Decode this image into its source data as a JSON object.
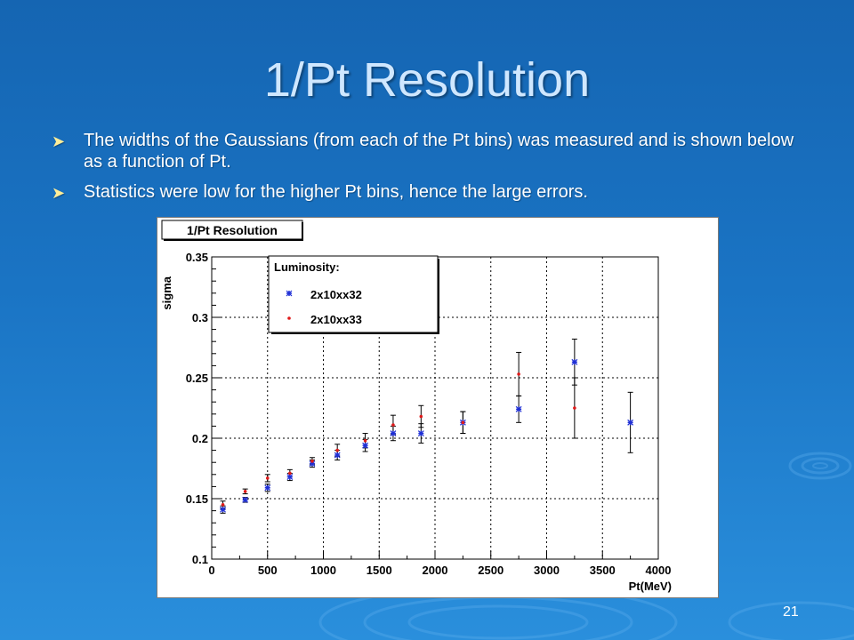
{
  "slide": {
    "title": "1/Pt Resolution",
    "bullets": [
      "The widths of the Gaussians (from each of the Pt bins) was measured and is shown below as a function of Pt.",
      "Statistics were low for the higher Pt bins, hence the large errors."
    ],
    "page_number": "21",
    "bullet_icon": "arrow-bullet-icon"
  },
  "colors": {
    "background": "#1a6fc0",
    "title": "#cfe7ff",
    "series_1": "#1f2fd6",
    "series_2": "#e01a1a",
    "error_bar": "#000000"
  },
  "chart_data": {
    "type": "scatter",
    "title": "1/Pt Resolution",
    "xlabel": "Pt(MeV)",
    "ylabel": "sigma",
    "xlim": [
      0,
      4000
    ],
    "ylim": [
      0.1,
      0.35
    ],
    "xticks": [
      0,
      500,
      1000,
      1500,
      2000,
      2500,
      3000,
      3500,
      4000
    ],
    "yticks": [
      0.1,
      0.15,
      0.2,
      0.25,
      0.3,
      0.35
    ],
    "grid": true,
    "legend": {
      "title": "Luminosity:",
      "placement": "top-left"
    },
    "series": [
      {
        "name": "2x10xx32",
        "marker": "star",
        "color": "#1f2fd6",
        "points": [
          {
            "x": 100,
            "y": 0.141,
            "err": 0.003
          },
          {
            "x": 300,
            "y": 0.149,
            "err": 0.002
          },
          {
            "x": 500,
            "y": 0.159,
            "err": 0.003
          },
          {
            "x": 700,
            "y": 0.168,
            "err": 0.003
          },
          {
            "x": 900,
            "y": 0.179,
            "err": 0.003
          },
          {
            "x": 1125,
            "y": 0.186,
            "err": 0.004
          },
          {
            "x": 1375,
            "y": 0.194,
            "err": 0.005
          },
          {
            "x": 1625,
            "y": 0.204,
            "err": 0.006
          },
          {
            "x": 1875,
            "y": 0.204,
            "err": 0.008
          },
          {
            "x": 2250,
            "y": 0.213,
            "err": 0.009
          },
          {
            "x": 2750,
            "y": 0.224,
            "err": 0.011
          },
          {
            "x": 3250,
            "y": 0.263,
            "err": 0.019
          },
          {
            "x": 3750,
            "y": 0.213,
            "err": 0.025
          }
        ]
      },
      {
        "name": "2x10xx33",
        "marker": "dot",
        "color": "#e01a1a",
        "points": [
          {
            "x": 100,
            "y": 0.145,
            "err": 0.003
          },
          {
            "x": 300,
            "y": 0.156,
            "err": 0.002
          },
          {
            "x": 500,
            "y": 0.167,
            "err": 0.003
          },
          {
            "x": 700,
            "y": 0.171,
            "err": 0.003
          },
          {
            "x": 900,
            "y": 0.181,
            "err": 0.003
          },
          {
            "x": 1125,
            "y": 0.19,
            "err": 0.005
          },
          {
            "x": 1375,
            "y": 0.198,
            "err": 0.006
          },
          {
            "x": 1625,
            "y": 0.211,
            "err": 0.008
          },
          {
            "x": 1875,
            "y": 0.218,
            "err": 0.009
          },
          {
            "x": 2250,
            "y": 0.213,
            "err": 0.009
          },
          {
            "x": 2750,
            "y": 0.253,
            "err": 0.018
          },
          {
            "x": 3250,
            "y": 0.225,
            "err": 0.025
          }
        ]
      }
    ]
  }
}
